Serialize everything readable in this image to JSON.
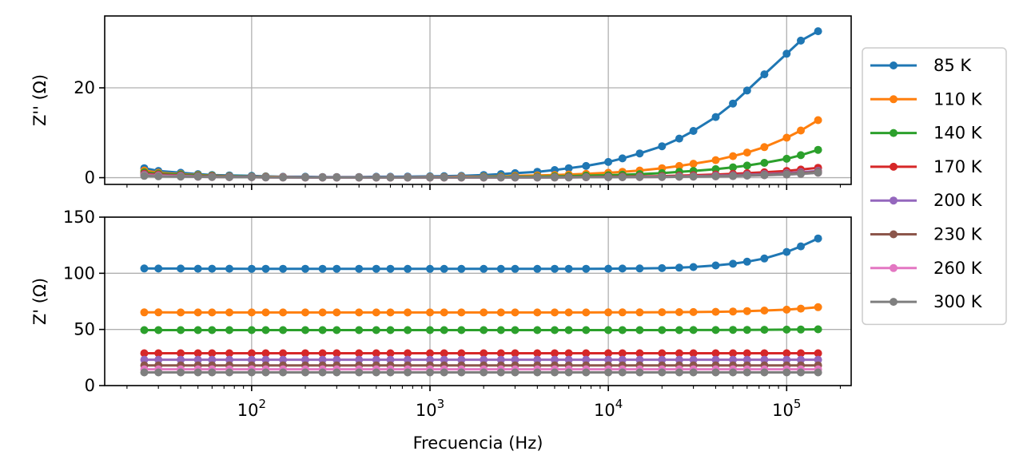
{
  "chart_data": {
    "type": "line",
    "xlabel": "Frecuencia (Hz)",
    "xscale": "log",
    "xlim": [
      15,
      230000
    ],
    "x": [
      25,
      30,
      40,
      50,
      60,
      75,
      100,
      120,
      150,
      200,
      250,
      300,
      400,
      500,
      600,
      750,
      1000,
      1200,
      1500,
      2000,
      2500,
      3000,
      4000,
      5000,
      6000,
      7500,
      10000,
      12000,
      15000,
      20000,
      25000,
      30000,
      40000,
      50000,
      60000,
      75000,
      100000,
      120000,
      150000
    ],
    "x_ticks": [
      {
        "value": 100,
        "base": "10",
        "exp": "2"
      },
      {
        "value": 1000,
        "base": "10",
        "exp": "3"
      },
      {
        "value": 10000,
        "base": "10",
        "exp": "4"
      },
      {
        "value": 100000,
        "base": "10",
        "exp": "5"
      }
    ],
    "grid": true,
    "legend_placement": "outside-right",
    "legend": [
      "85 K",
      "110 K",
      "140 K",
      "170 K",
      "200 K",
      "230 K",
      "260 K",
      "300 K"
    ],
    "colors": [
      "#1f77b4",
      "#ff7f0e",
      "#2ca02c",
      "#d62728",
      "#9467bd",
      "#8c564b",
      "#e377c2",
      "#7f7f7f"
    ],
    "panels": [
      {
        "ylabel": "Z'' (Ω)",
        "ylim": [
          -1.5,
          36
        ],
        "yticks": [
          0,
          20
        ],
        "series": [
          {
            "values": [
              2.1,
              1.5,
              1.1,
              0.8,
              0.6,
              0.5,
              0.4,
              0.3,
              0.2,
              0.2,
              0.15,
              0.15,
              0.15,
              0.2,
              0.2,
              0.25,
              0.3,
              0.35,
              0.4,
              0.6,
              0.8,
              1.0,
              1.3,
              1.7,
              2.1,
              2.6,
              3.5,
              4.3,
              5.4,
              7.0,
              8.7,
              10.4,
              13.5,
              16.5,
              19.4,
              23.0,
              27.6,
              30.5,
              32.6
            ]
          },
          {
            "values": [
              1.6,
              1.1,
              0.8,
              0.6,
              0.45,
              0.35,
              0.25,
              0.2,
              0.15,
              0.1,
              0.1,
              0.1,
              0.1,
              0.1,
              0.1,
              0.1,
              0.15,
              0.15,
              0.2,
              0.25,
              0.3,
              0.4,
              0.5,
              0.6,
              0.7,
              0.85,
              1.1,
              1.3,
              1.6,
              2.1,
              2.6,
              3.1,
              3.9,
              4.8,
              5.6,
              6.8,
              8.9,
              10.5,
              12.8
            ]
          },
          {
            "values": [
              1.2,
              0.9,
              0.7,
              0.5,
              0.4,
              0.3,
              0.2,
              0.15,
              0.1,
              0.1,
              0.05,
              0.05,
              0.05,
              0.05,
              0.05,
              0.05,
              0.1,
              0.1,
              0.1,
              0.15,
              0.2,
              0.2,
              0.25,
              0.3,
              0.35,
              0.45,
              0.55,
              0.65,
              0.8,
              1.0,
              1.3,
              1.5,
              1.9,
              2.3,
              2.7,
              3.3,
              4.2,
              5.0,
              6.2
            ]
          },
          {
            "values": [
              0.9,
              0.7,
              0.5,
              0.35,
              0.3,
              0.2,
              0.15,
              0.1,
              0.1,
              0.05,
              0.05,
              0.05,
              0.05,
              0.05,
              0.05,
              0.05,
              0.05,
              0.05,
              0.05,
              0.05,
              0.1,
              0.1,
              0.1,
              0.1,
              0.15,
              0.15,
              0.2,
              0.25,
              0.3,
              0.35,
              0.45,
              0.55,
              0.7,
              0.85,
              1.0,
              1.2,
              1.5,
              1.8,
              2.2
            ]
          },
          {
            "values": [
              0.7,
              0.55,
              0.4,
              0.3,
              0.25,
              0.2,
              0.15,
              0.1,
              0.1,
              0.05,
              0.05,
              0.05,
              0.05,
              0.05,
              0.05,
              0.05,
              0.05,
              0.05,
              0.05,
              0.05,
              0.05,
              0.05,
              0.05,
              0.1,
              0.1,
              0.1,
              0.15,
              0.15,
              0.2,
              0.25,
              0.3,
              0.35,
              0.45,
              0.55,
              0.65,
              0.8,
              1.0,
              1.2,
              1.5
            ]
          },
          {
            "values": [
              0.6,
              0.5,
              0.35,
              0.25,
              0.2,
              0.15,
              0.1,
              0.1,
              0.05,
              0.05,
              0.05,
              0.05,
              0.05,
              0.05,
              0.05,
              0.05,
              0.05,
              0.05,
              0.05,
              0.05,
              0.05,
              0.05,
              0.05,
              0.05,
              0.1,
              0.1,
              0.1,
              0.15,
              0.15,
              0.2,
              0.25,
              0.3,
              0.35,
              0.45,
              0.55,
              0.65,
              0.85,
              1.0,
              1.3
            ]
          },
          {
            "values": [
              0.5,
              0.4,
              0.3,
              0.2,
              0.15,
              0.1,
              0.1,
              0.05,
              0.05,
              0.05,
              0.05,
              0.05,
              0.05,
              0.05,
              0.05,
              0.05,
              0.05,
              0.05,
              0.05,
              0.05,
              0.05,
              0.05,
              0.05,
              0.05,
              0.05,
              0.1,
              0.1,
              0.1,
              0.15,
              0.15,
              0.2,
              0.25,
              0.3,
              0.35,
              0.45,
              0.55,
              0.7,
              0.85,
              1.1
            ]
          },
          {
            "values": [
              0.4,
              0.3,
              0.25,
              0.2,
              0.15,
              0.1,
              0.1,
              0.05,
              0.05,
              0.05,
              0.05,
              0.05,
              0.05,
              0.05,
              0.05,
              0.05,
              0.05,
              0.05,
              0.05,
              0.05,
              0.05,
              0.05,
              0.05,
              0.05,
              0.05,
              0.1,
              0.1,
              0.1,
              0.15,
              0.15,
              0.2,
              0.25,
              0.3,
              0.35,
              0.45,
              0.55,
              0.7,
              0.85,
              1.1
            ]
          }
        ]
      },
      {
        "ylabel": "Z' (Ω)",
        "ylim": [
          0,
          150
        ],
        "yticks": [
          0,
          50,
          100,
          150
        ],
        "series": [
          {
            "values": [
              104.3,
              104.2,
              104.2,
              104.1,
              104.1,
              104.1,
              104.0,
              104.0,
              104.0,
              104.0,
              104.0,
              104.0,
              104.0,
              104.0,
              104.0,
              103.9,
              103.9,
              103.9,
              103.9,
              103.9,
              103.9,
              103.9,
              103.9,
              104.0,
              104.0,
              104.0,
              104.1,
              104.2,
              104.3,
              104.6,
              105.0,
              105.6,
              107.0,
              108.5,
              110.3,
              113.2,
              119.0,
              124.0,
              131.0
            ]
          },
          {
            "values": [
              65.2,
              65.2,
              65.1,
              65.1,
              65.1,
              65.1,
              65.1,
              65.1,
              65.1,
              65.1,
              65.1,
              65.1,
              65.1,
              65.1,
              65.1,
              65.1,
              65.1,
              65.1,
              65.1,
              65.1,
              65.1,
              65.1,
              65.1,
              65.1,
              65.1,
              65.1,
              65.2,
              65.2,
              65.2,
              65.3,
              65.4,
              65.5,
              65.7,
              66.0,
              66.3,
              66.8,
              67.6,
              68.5,
              69.8
            ]
          },
          {
            "values": [
              49.4,
              49.4,
              49.4,
              49.4,
              49.4,
              49.4,
              49.4,
              49.4,
              49.4,
              49.4,
              49.4,
              49.4,
              49.4,
              49.4,
              49.4,
              49.4,
              49.4,
              49.4,
              49.4,
              49.4,
              49.4,
              49.4,
              49.4,
              49.4,
              49.4,
              49.4,
              49.4,
              49.4,
              49.4,
              49.4,
              49.4,
              49.5,
              49.5,
              49.6,
              49.6,
              49.7,
              49.8,
              49.9,
              50.1
            ]
          },
          {
            "values": [
              28.8,
              28.8,
              28.8,
              28.8,
              28.8,
              28.8,
              28.8,
              28.8,
              28.8,
              28.8,
              28.8,
              28.8,
              28.8,
              28.8,
              28.8,
              28.8,
              28.8,
              28.8,
              28.8,
              28.8,
              28.8,
              28.8,
              28.8,
              28.8,
              28.8,
              28.8,
              28.8,
              28.8,
              28.8,
              28.8,
              28.8,
              28.8,
              28.8,
              28.8,
              28.8,
              28.8,
              28.8,
              28.8,
              28.8
            ]
          },
          {
            "values": [
              23.0,
              23.0,
              23.0,
              23.0,
              23.0,
              23.0,
              23.0,
              23.0,
              23.0,
              23.0,
              23.0,
              23.0,
              23.0,
              23.0,
              23.0,
              23.0,
              23.0,
              23.0,
              23.0,
              23.0,
              23.0,
              23.0,
              23.0,
              23.0,
              23.0,
              23.0,
              23.0,
              23.0,
              23.0,
              23.0,
              23.0,
              23.0,
              23.0,
              23.0,
              23.0,
              23.0,
              23.0,
              23.0,
              23.0
            ]
          },
          {
            "values": [
              18.0,
              18.0,
              18.0,
              18.0,
              18.0,
              18.0,
              18.0,
              18.0,
              18.0,
              18.0,
              18.0,
              18.0,
              18.0,
              18.0,
              18.0,
              18.0,
              18.0,
              18.0,
              18.0,
              18.0,
              18.0,
              18.0,
              18.0,
              18.0,
              18.0,
              18.0,
              18.0,
              18.0,
              18.0,
              18.0,
              18.0,
              18.0,
              18.0,
              18.0,
              18.0,
              18.0,
              18.0,
              18.0,
              18.0
            ]
          },
          {
            "values": [
              14.5,
              14.5,
              14.5,
              14.5,
              14.5,
              14.5,
              14.5,
              14.5,
              14.5,
              14.5,
              14.5,
              14.5,
              14.5,
              14.5,
              14.5,
              14.5,
              14.5,
              14.5,
              14.5,
              14.5,
              14.5,
              14.5,
              14.5,
              14.5,
              14.5,
              14.5,
              14.5,
              14.5,
              14.5,
              14.5,
              14.5,
              14.5,
              14.5,
              14.5,
              14.5,
              14.5,
              14.5,
              14.5,
              14.5
            ]
          },
          {
            "values": [
              11.7,
              11.7,
              11.7,
              11.7,
              11.7,
              11.7,
              11.7,
              11.7,
              11.7,
              11.7,
              11.7,
              11.7,
              11.7,
              11.7,
              11.7,
              11.7,
              11.7,
              11.7,
              11.7,
              11.7,
              11.7,
              11.7,
              11.7,
              11.7,
              11.7,
              11.7,
              11.7,
              11.7,
              11.7,
              11.7,
              11.7,
              11.7,
              11.7,
              11.7,
              11.7,
              11.7,
              11.7,
              11.7,
              11.7
            ]
          }
        ]
      }
    ]
  }
}
